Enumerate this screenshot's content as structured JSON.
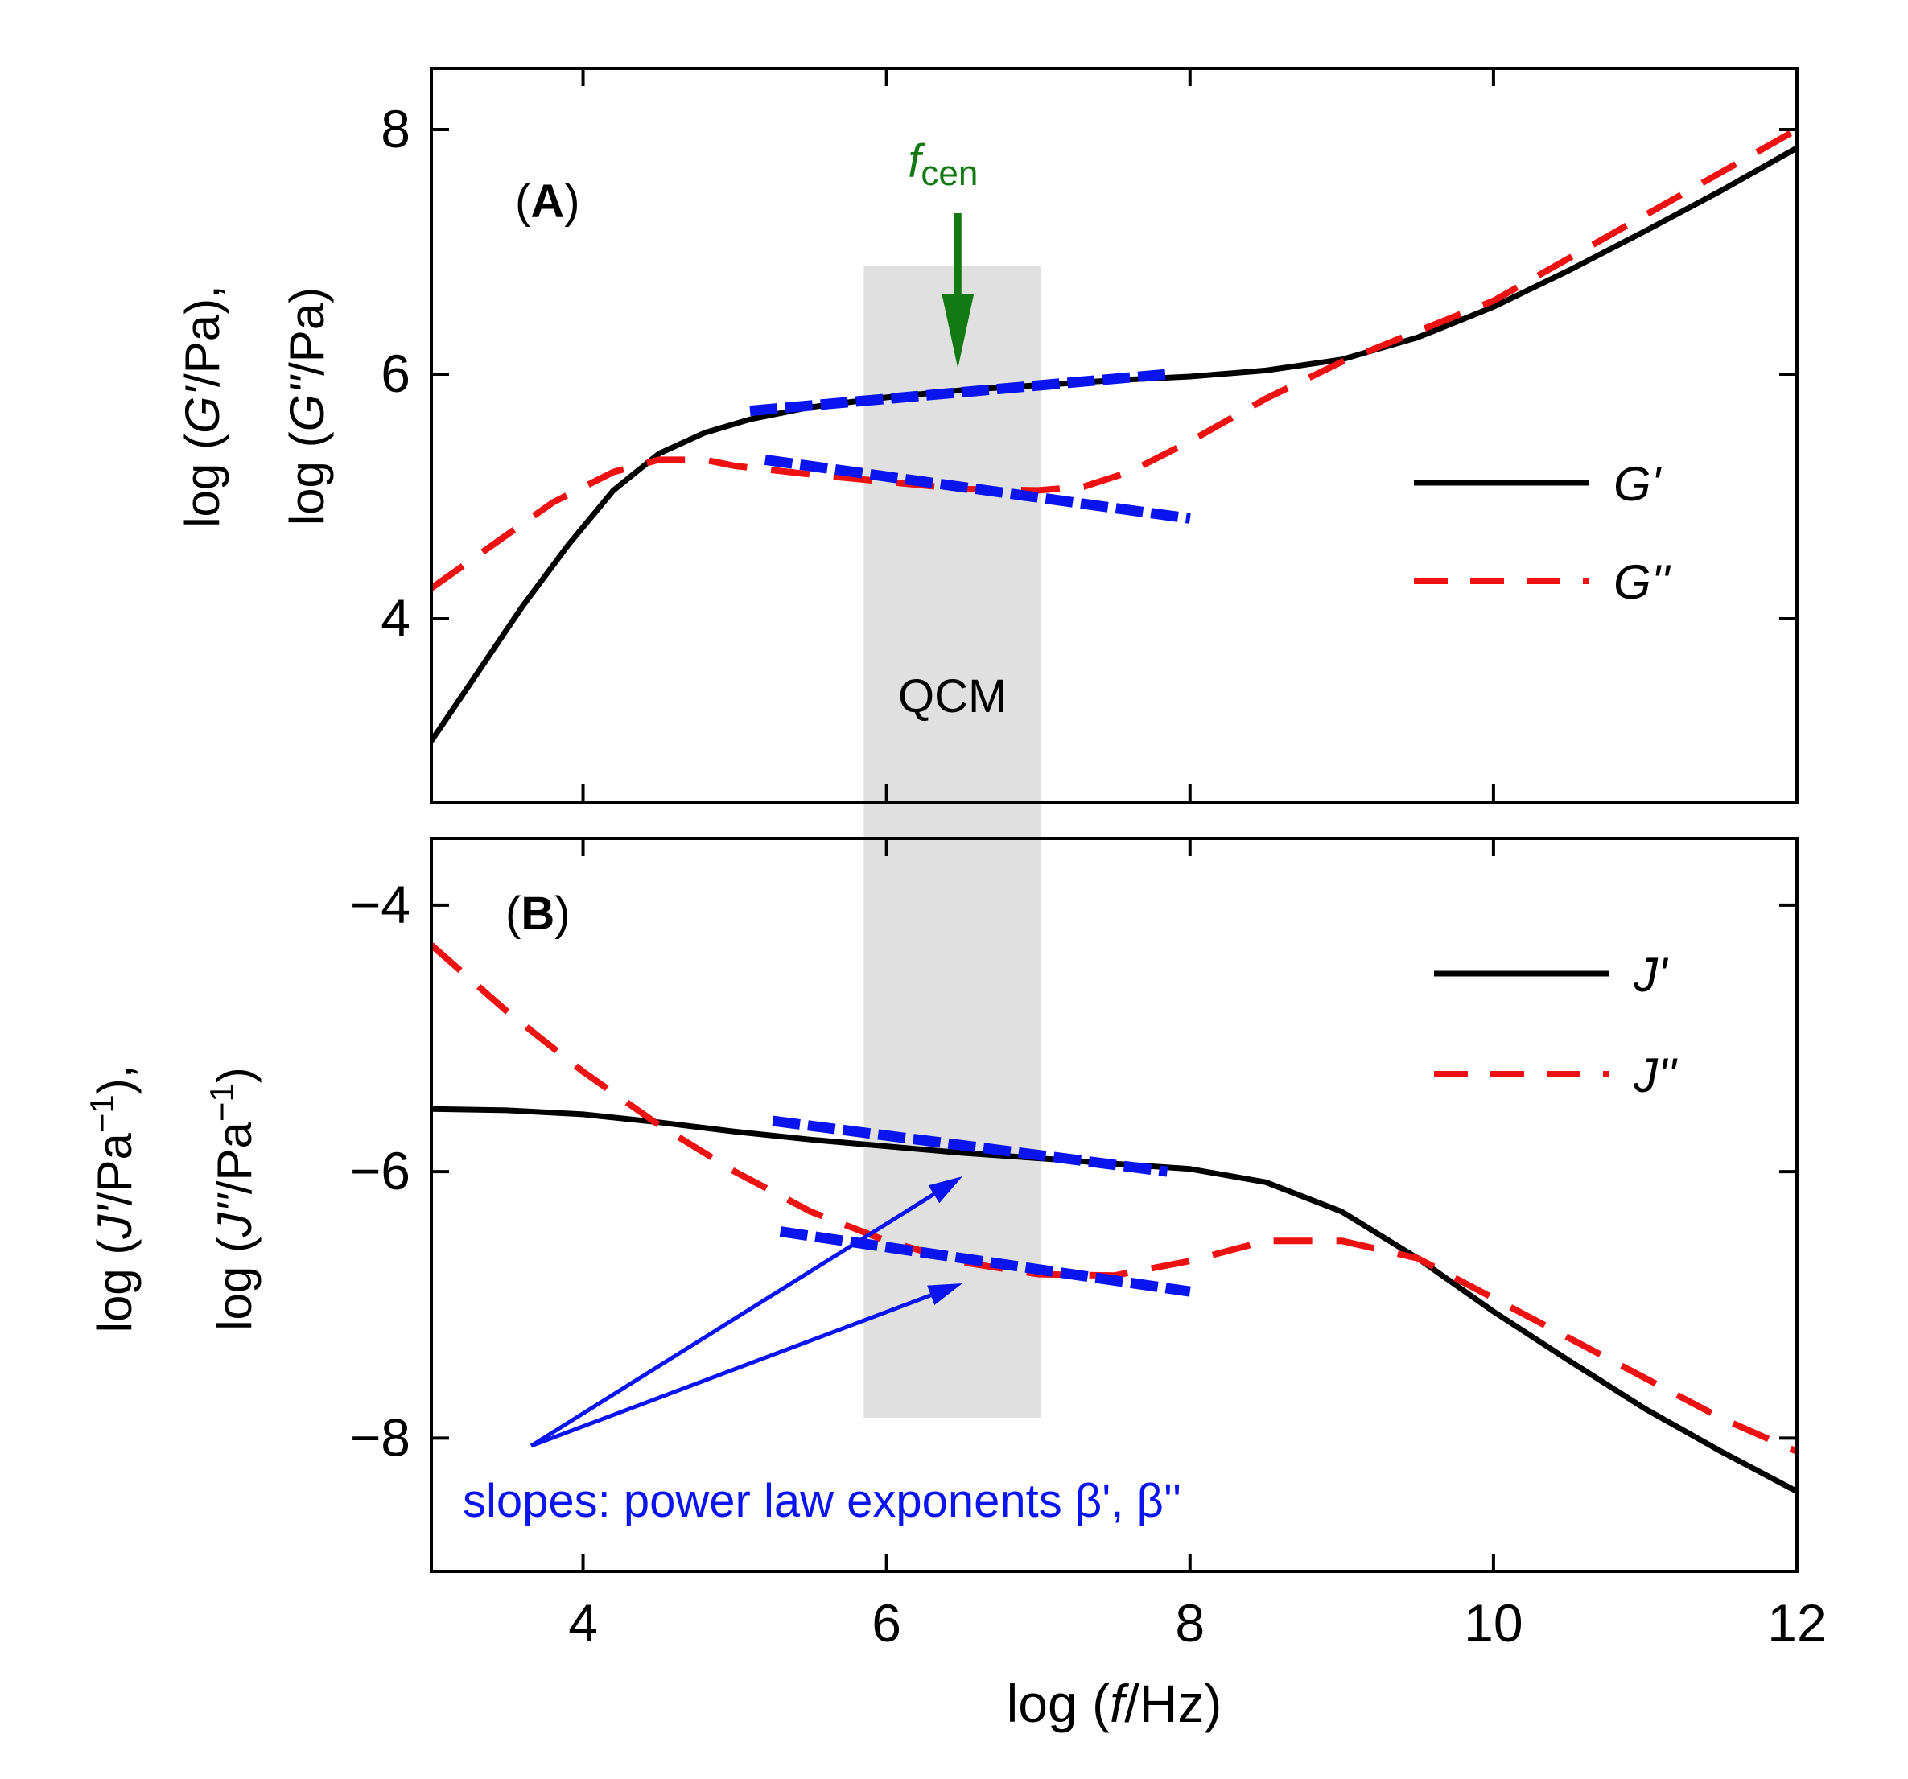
{
  "colors": {
    "G_prime": "#000000",
    "G_dprime": "#ee1111",
    "fit": "#0a14ee",
    "fcen_arrow": "#137a13",
    "qcm_band": "#e0e0e0",
    "frame": "#000000"
  },
  "x_axis": {
    "label_prefix": "log (",
    "label_var": "f",
    "label_suffix": "/Hz)",
    "range": [
      3,
      12
    ],
    "ticks": [
      4,
      6,
      8,
      10,
      12
    ],
    "tick_labels": [
      "4",
      "6",
      "8",
      "10",
      "12"
    ]
  },
  "qcm": {
    "label": "QCM",
    "x_range": [
      5.85,
      7.02
    ],
    "center_label_main": "f",
    "center_label_sub": "cen",
    "center_x": 6.47
  },
  "annotation": {
    "slopes_text": "slopes: power law exponents β', β''"
  },
  "chart_data": [
    {
      "type": "line",
      "panel_label": "A",
      "ylabel_line1_prefix": "log (",
      "ylabel_line1_var": "G'",
      "ylabel_line1_suffix": "/Pa),",
      "ylabel_line2_prefix": "log (",
      "ylabel_line2_var": "G''",
      "ylabel_line2_suffix": "/Pa)",
      "xlim": [
        3,
        12
      ],
      "ylim": [
        2.5,
        8.5
      ],
      "yticks": [
        4,
        6,
        8
      ],
      "ytick_labels": [
        "4",
        "6",
        "8"
      ],
      "legend": [
        {
          "name": "G'",
          "style": "solid"
        },
        {
          "name": "G''",
          "style": "dashed"
        }
      ],
      "series": [
        {
          "name": "G'",
          "style": "solid",
          "x": [
            3.0,
            3.3,
            3.6,
            3.9,
            4.2,
            4.5,
            4.8,
            5.1,
            5.5,
            6.0,
            6.5,
            7.0,
            7.5,
            8.0,
            8.5,
            9.0,
            9.5,
            10.0,
            10.5,
            11.0,
            11.5,
            12.0
          ],
          "y": [
            3.0,
            3.55,
            4.1,
            4.6,
            5.05,
            5.35,
            5.52,
            5.63,
            5.73,
            5.81,
            5.87,
            5.91,
            5.95,
            5.98,
            6.03,
            6.12,
            6.3,
            6.55,
            6.85,
            7.17,
            7.5,
            7.85
          ]
        },
        {
          "name": "G''",
          "style": "dashed",
          "x": [
            3.0,
            3.4,
            3.8,
            4.2,
            4.5,
            4.8,
            5.0,
            5.5,
            6.0,
            6.5,
            7.0,
            7.3,
            7.6,
            8.0,
            8.5,
            9.0,
            9.5,
            10.0,
            10.5,
            11.0,
            11.5,
            12.0
          ],
          "y": [
            4.25,
            4.6,
            4.95,
            5.2,
            5.3,
            5.3,
            5.25,
            5.18,
            5.12,
            5.06,
            5.05,
            5.08,
            5.2,
            5.45,
            5.8,
            6.1,
            6.35,
            6.6,
            6.95,
            7.3,
            7.65,
            8.0
          ]
        },
        {
          "name": "fit G'",
          "style": "fit",
          "x": [
            5.1,
            7.85
          ],
          "y": [
            5.7,
            6.0
          ]
        },
        {
          "name": "fit G''",
          "style": "fit",
          "x": [
            5.2,
            8.0
          ],
          "y": [
            5.3,
            4.82
          ]
        }
      ]
    },
    {
      "type": "line",
      "panel_label": "B",
      "ylabel_line1_prefix": "log (",
      "ylabel_line1_var": "J'",
      "ylabel_line1_suffix": "/Pa",
      "ylabel_line1_sup": "−1",
      "ylabel_line1_end": "),",
      "ylabel_line2_prefix": "log (",
      "ylabel_line2_var": "J''",
      "ylabel_line2_suffix": "/Pa",
      "ylabel_line2_sup": "−1",
      "ylabel_line2_end": ")",
      "xlim": [
        3,
        12
      ],
      "ylim": [
        -9,
        -3.5
      ],
      "yticks": [
        -8,
        -6,
        -4
      ],
      "ytick_labels": [
        "−8",
        "−6",
        "−4"
      ],
      "legend": [
        {
          "name": "J'",
          "style": "solid"
        },
        {
          "name": "J''",
          "style": "dashed"
        }
      ],
      "series": [
        {
          "name": "J'",
          "style": "solid",
          "x": [
            3.0,
            3.5,
            4.0,
            4.5,
            5.0,
            5.5,
            6.0,
            6.5,
            7.0,
            7.5,
            8.0,
            8.5,
            9.0,
            9.5,
            10.0,
            10.5,
            11.0,
            11.5,
            12.0
          ],
          "y": [
            -5.53,
            -5.54,
            -5.57,
            -5.63,
            -5.7,
            -5.76,
            -5.81,
            -5.86,
            -5.9,
            -5.94,
            -5.98,
            -6.08,
            -6.3,
            -6.65,
            -7.05,
            -7.42,
            -7.78,
            -8.1,
            -8.4
          ]
        },
        {
          "name": "J''",
          "style": "dashed",
          "x": [
            3.0,
            3.5,
            4.0,
            4.5,
            5.0,
            5.5,
            6.0,
            6.5,
            7.0,
            7.5,
            8.0,
            8.5,
            9.0,
            9.5,
            10.0,
            10.5,
            11.0,
            11.5,
            12.0
          ],
          "y": [
            -4.3,
            -4.8,
            -5.25,
            -5.65,
            -6.0,
            -6.3,
            -6.52,
            -6.68,
            -6.77,
            -6.78,
            -6.67,
            -6.52,
            -6.52,
            -6.65,
            -6.95,
            -7.25,
            -7.55,
            -7.85,
            -8.1
          ]
        },
        {
          "name": "fit J'",
          "style": "fit",
          "x": [
            5.25,
            7.85
          ],
          "y": [
            -5.62,
            -6.0
          ]
        },
        {
          "name": "fit J''",
          "style": "fit",
          "x": [
            5.3,
            8.0
          ],
          "y": [
            -6.45,
            -6.9
          ]
        }
      ]
    }
  ]
}
